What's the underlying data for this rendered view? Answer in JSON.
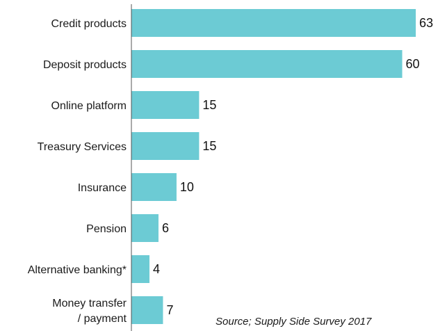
{
  "chart_data": {
    "type": "bar",
    "orientation": "horizontal",
    "categories": [
      "Credit products",
      "Deposit products",
      "Online platform",
      "Treasury Services",
      "Insurance",
      "Pension",
      "Alternative banking*",
      "Money transfer / payment"
    ],
    "category_lines": [
      [
        "Credit products"
      ],
      [
        "Deposit products"
      ],
      [
        "Online platform"
      ],
      [
        "Treasury Services"
      ],
      [
        "Insurance"
      ],
      [
        "Pension"
      ],
      [
        "Alternative banking*"
      ],
      [
        "Money transfer",
        "/ payment"
      ]
    ],
    "values": [
      63,
      60,
      15,
      15,
      10,
      6,
      4,
      7
    ],
    "xlim": [
      0,
      63
    ],
    "bar_color": "#6ccbd4",
    "axis_color": "#555555",
    "grid": false,
    "title": "",
    "xlabel": "",
    "ylabel": ""
  },
  "source_note": "Source; Supply Side Survey 2017"
}
